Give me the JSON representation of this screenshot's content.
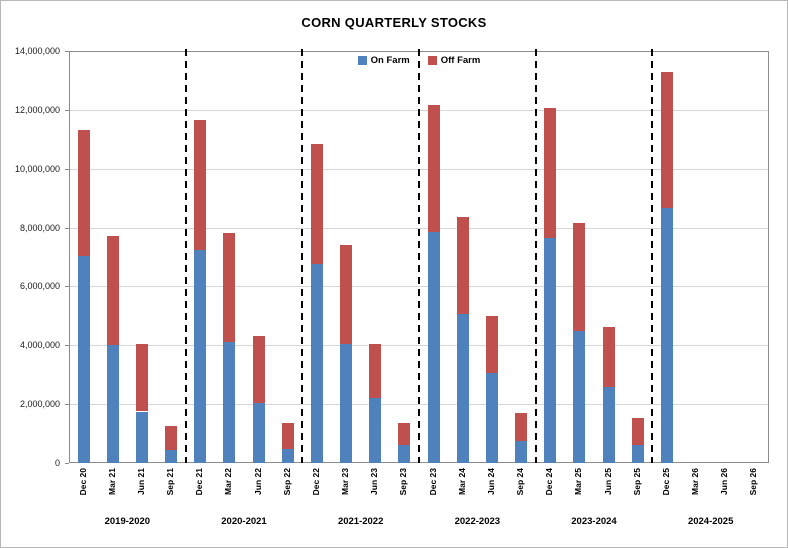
{
  "chart_data": {
    "type": "bar",
    "stacked": true,
    "title": "CORN QUARTERLY STOCKS",
    "ylim": [
      0,
      14000000
    ],
    "ytick_step": 2000000,
    "grid": true,
    "legend_position": "top-center",
    "categories": [
      "Dec 20",
      "Mar 21",
      "Jun 21",
      "Sep 21",
      "Dec 21",
      "Mar 22",
      "Jun 22",
      "Sep 22",
      "Dec 22",
      "Mar 23",
      "Jun 23",
      "Sep 23",
      "Dec 23",
      "Mar 24",
      "Jun 24",
      "Sep 24",
      "Dec 24",
      "Mar 25",
      "Jun 25",
      "Sep 25",
      "Dec 25",
      "Mar 26",
      "Jun 26",
      "Sep 26"
    ],
    "series": [
      {
        "name": "On Farm",
        "color": "#4F81BD",
        "values": [
          7050000,
          4000000,
          1750000,
          450000,
          7250000,
          4100000,
          2050000,
          480000,
          6750000,
          4050000,
          2200000,
          600000,
          7850000,
          5050000,
          3050000,
          750000,
          7650000,
          4500000,
          2570000,
          610000,
          8670000,
          0,
          0,
          0
        ]
      },
      {
        "name": "Off Farm",
        "color": "#C0504D",
        "values": [
          4250000,
          3700000,
          2300000,
          800000,
          4400000,
          3700000,
          2250000,
          880000,
          4100000,
          3350000,
          1850000,
          760000,
          4300000,
          3300000,
          1950000,
          950000,
          4400000,
          3650000,
          2050000,
          920000,
          4620000,
          0,
          0,
          0
        ]
      }
    ],
    "group_labels": [
      "2019-2020",
      "2020-2021",
      "2021-2022",
      "2022-2023",
      "2023-2024",
      "2024-2025"
    ],
    "separator_boundaries": [
      4,
      8,
      12,
      16,
      20
    ],
    "separator_style": "dashed"
  }
}
